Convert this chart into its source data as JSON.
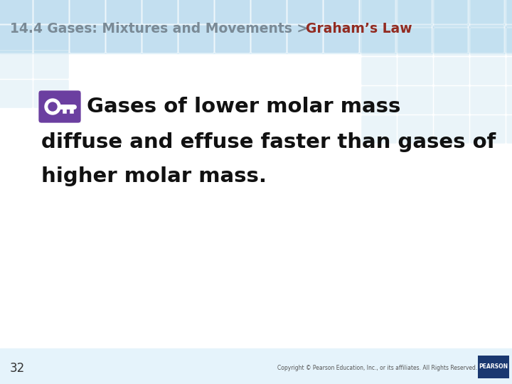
{
  "title_left": "14.4 Gases: Mixtures and Movements > ",
  "title_right": "Graham’s Law",
  "title_left_color": "#7a8a96",
  "title_right_color": "#922b21",
  "title_fontsize": 13.5,
  "body_line1": "Gases of lower molar mass",
  "body_line2": "diffuse and effuse faster than gases of",
  "body_line3": "higher molar mass.",
  "body_fontsize": 21,
  "body_color": "#111111",
  "icon_color": "#6b3fa0",
  "footer_number": "32",
  "footer_copyright": "Copyright © Pearson Education, Inc., or its affiliates. All Rights Reserved.",
  "tile_color": "#b8d8ec",
  "tile_color2": "#c5e2f0",
  "header_bg": "#d8edf8",
  "footer_bg": "#e5f3fb",
  "white": "#ffffff",
  "pearson_bg": "#1a3870",
  "pearson_text": "PEARSON"
}
